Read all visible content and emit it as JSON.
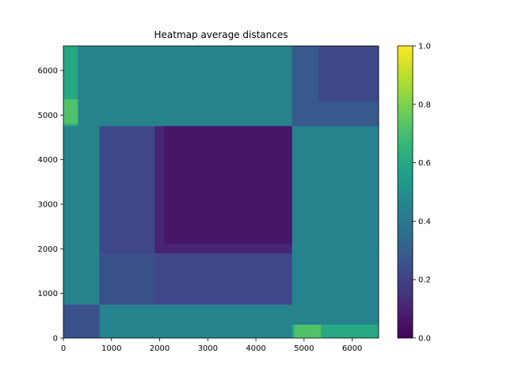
{
  "chart_data": {
    "type": "heatmap",
    "title": "Heatmap average distances",
    "xlabel": "",
    "ylabel": "",
    "xlim": [
      0,
      6550
    ],
    "ylim": [
      0,
      6550
    ],
    "x_ticks": [
      "0",
      "1000",
      "2000",
      "3000",
      "4000",
      "5000",
      "6000"
    ],
    "y_ticks": [
      "0",
      "1000",
      "2000",
      "3000",
      "4000",
      "5000",
      "6000"
    ],
    "colorbar": {
      "colormap": "viridis",
      "range": [
        0,
        1
      ],
      "ticks": [
        "0.0",
        "0.2",
        "0.4",
        "0.6",
        "0.8",
        "1.0"
      ]
    },
    "grid": false,
    "regions": [
      {
        "x": [
          0,
          6550
        ],
        "y": [
          0,
          6550
        ],
        "value": 0.45
      },
      {
        "x": [
          750,
          4750
        ],
        "y": [
          750,
          4750
        ],
        "value": 0.22
      },
      {
        "x": [
          1900,
          4750
        ],
        "y": [
          1900,
          4750
        ],
        "value": 0.1
      },
      {
        "x": [
          2100,
          4750
        ],
        "y": [
          2100,
          4750
        ],
        "value": 0.06
      },
      {
        "x": [
          4750,
          6550
        ],
        "y": [
          4750,
          6550
        ],
        "value": 0.28
      },
      {
        "x": [
          5300,
          6550
        ],
        "y": [
          5300,
          6550
        ],
        "value": 0.22
      },
      {
        "x": [
          0,
          750
        ],
        "y": [
          0,
          750
        ],
        "value": 0.25
      },
      {
        "x": [
          750,
          1900
        ],
        "y": [
          750,
          1900
        ],
        "value": 0.25
      },
      {
        "x": [
          0,
          300
        ],
        "y": [
          4750,
          6550
        ],
        "value": 0.6
      },
      {
        "x": [
          4750,
          6550
        ],
        "y": [
          0,
          300
        ],
        "value": 0.6
      },
      {
        "x": [
          4800,
          5350
        ],
        "y": [
          0,
          300
        ],
        "value": 0.72
      },
      {
        "x": [
          0,
          300
        ],
        "y": [
          4800,
          5350
        ],
        "value": 0.72
      }
    ]
  },
  "colors": {
    "viridis": [
      "#440154",
      "#482878",
      "#3e4989",
      "#31688e",
      "#26828e",
      "#1f9e89",
      "#35b779",
      "#6ece58",
      "#b5de2b",
      "#fde725"
    ]
  }
}
